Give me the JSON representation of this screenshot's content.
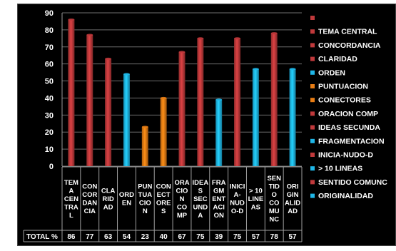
{
  "chart_data": {
    "type": "bar",
    "title": "",
    "xlabel": "",
    "ylabel": "",
    "ylim": [
      0,
      90
    ],
    "yticks": [
      0,
      10,
      20,
      30,
      40,
      50,
      60,
      70,
      80,
      90
    ],
    "grid": true,
    "legend_position": "right",
    "categories": [
      "TEMA CENTRAL",
      "CONCORDANCIA",
      "CLARIDAD",
      "ORDEN",
      "PUNTUACION",
      "CONECTORES",
      "ORACION COMP",
      "IDEAS SECUNDA",
      "FRAGMENTACION",
      "INICIA-NUDO-D",
      "> 10 LINEAS",
      "SENTIDO COMUNC",
      "ORIGINALIDAD"
    ],
    "category_table_labels": [
      [
        "TEM",
        "A",
        "CEN",
        "TRA",
        "L"
      ],
      [
        "CON",
        "COR",
        "DAN",
        "CIA"
      ],
      [
        "CLA",
        "RID",
        "AD"
      ],
      [
        "ORD",
        "EN"
      ],
      [
        "PUN",
        "TUA",
        "CIO",
        "N"
      ],
      [
        "CON",
        "ECT",
        "ORE",
        "S"
      ],
      [
        "ORA",
        "CIO",
        "N",
        "CO",
        "MP"
      ],
      [
        "IDEA",
        "S",
        "SEC",
        "UND",
        "A"
      ],
      [
        "FRA",
        "GM",
        "ENT",
        "ACI",
        "ON"
      ],
      [
        "INICI",
        "A-",
        "NUD",
        "O-D"
      ],
      [
        "> 10",
        "LINE",
        "AS"
      ],
      [
        "SEN",
        "TID",
        "O",
        "CO",
        "MU",
        "NC"
      ],
      [
        "ORI",
        "GIN",
        "ALID",
        "AD"
      ]
    ],
    "series": [
      {
        "name": "TOTAL %",
        "values": [
          86,
          77,
          63,
          54,
          23,
          40,
          67,
          75,
          39,
          75,
          57,
          78,
          57
        ]
      }
    ],
    "bar_colors": [
      "#c0393b",
      "#c0393b",
      "#c0393b",
      "#1fb7e8",
      "#e87d14",
      "#e87d14",
      "#c0393b",
      "#c0393b",
      "#1fb7e8",
      "#c0393b",
      "#1fb7e8",
      "#c0393b",
      "#1fb7e8"
    ],
    "legend_top_color": "#c0393b",
    "table_row_label": "TOTAL %"
  }
}
